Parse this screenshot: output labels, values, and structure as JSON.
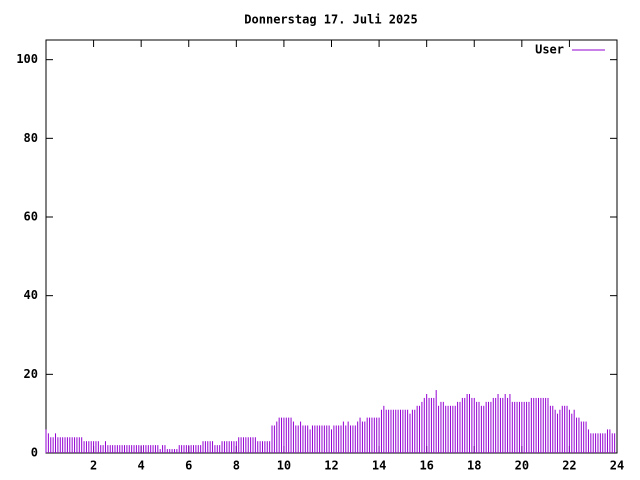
{
  "chart_data": {
    "type": "impulses",
    "title": "Donnerstag 17. Juli 2025",
    "x": [
      0,
      0.1,
      0.2,
      0.3,
      0.4,
      0.5,
      0.6,
      0.7,
      0.8,
      0.9,
      1,
      1.1,
      1.2,
      1.3,
      1.4,
      1.5,
      1.6,
      1.7,
      1.8,
      1.9,
      2,
      2.1,
      2.2,
      2.3,
      2.4,
      2.5,
      2.6,
      2.7,
      2.8,
      2.9,
      3,
      3.1,
      3.2,
      3.3,
      3.4,
      3.5,
      3.6,
      3.7,
      3.8,
      3.9,
      4,
      4.1,
      4.2,
      4.3,
      4.4,
      4.5,
      4.6,
      4.7,
      4.8,
      4.9,
      5,
      5.1,
      5.2,
      5.3,
      5.4,
      5.5,
      5.6,
      5.7,
      5.8,
      5.9,
      6,
      6.1,
      6.2,
      6.3,
      6.4,
      6.5,
      6.6,
      6.7,
      6.8,
      6.9,
      7,
      7.1,
      7.2,
      7.3,
      7.4,
      7.5,
      7.6,
      7.7,
      7.8,
      7.9,
      8,
      8.1,
      8.2,
      8.3,
      8.4,
      8.5,
      8.6,
      8.7,
      8.8,
      8.9,
      9,
      9.1,
      9.2,
      9.3,
      9.4,
      9.5,
      9.6,
      9.7,
      9.8,
      9.9,
      10,
      10.1,
      10.2,
      10.3,
      10.4,
      10.5,
      10.6,
      10.7,
      10.8,
      10.9,
      11,
      11.1,
      11.2,
      11.3,
      11.4,
      11.5,
      11.6,
      11.7,
      11.8,
      11.9,
      12,
      12.1,
      12.2,
      12.3,
      12.4,
      12.5,
      12.6,
      12.7,
      12.8,
      12.9,
      13,
      13.1,
      13.2,
      13.3,
      13.4,
      13.5,
      13.6,
      13.7,
      13.8,
      13.9,
      14,
      14.1,
      14.2,
      14.3,
      14.4,
      14.5,
      14.6,
      14.7,
      14.8,
      14.9,
      15,
      15.1,
      15.2,
      15.3,
      15.4,
      15.5,
      15.6,
      15.7,
      15.8,
      15.9,
      16,
      16.1,
      16.2,
      16.3,
      16.4,
      16.5,
      16.6,
      16.7,
      16.8,
      16.9,
      17,
      17.1,
      17.2,
      17.3,
      17.4,
      17.5,
      17.6,
      17.7,
      17.8,
      17.9,
      18,
      18.1,
      18.2,
      18.3,
      18.4,
      18.5,
      18.6,
      18.7,
      18.8,
      18.9,
      19,
      19.1,
      19.2,
      19.3,
      19.4,
      19.5,
      19.6,
      19.7,
      19.8,
      19.9,
      20,
      20.1,
      20.2,
      20.3,
      20.4,
      20.5,
      20.6,
      20.7,
      20.8,
      20.9,
      21,
      21.1,
      21.2,
      21.3,
      21.4,
      21.5,
      21.6,
      21.7,
      21.8,
      21.9,
      22,
      22.1,
      22.2,
      22.3,
      22.4,
      22.5,
      22.6,
      22.7,
      22.8,
      22.9,
      23,
      23.1,
      23.2,
      23.3,
      23.4,
      23.5,
      23.6,
      23.7,
      23.8,
      23.9
    ],
    "series": [
      {
        "name": "User",
        "color": "#9400d3",
        "values": [
          6,
          5,
          4,
          4,
          5,
          4,
          4,
          4,
          4,
          4,
          4,
          4,
          4,
          4,
          4,
          4,
          3,
          3,
          3,
          3,
          3,
          3,
          3,
          2,
          2,
          3,
          2,
          2,
          2,
          2,
          2,
          2,
          2,
          2,
          2,
          2,
          2,
          2,
          2,
          2,
          2,
          2,
          2,
          2,
          2,
          2,
          2,
          2,
          1,
          2,
          2,
          1,
          1,
          1,
          1,
          1,
          2,
          2,
          2,
          2,
          2,
          2,
          2,
          2,
          2,
          2,
          3,
          3,
          3,
          3,
          3,
          2,
          2,
          2,
          3,
          3,
          3,
          3,
          3,
          3,
          3,
          4,
          4,
          4,
          4,
          4,
          4,
          4,
          4,
          3,
          3,
          3,
          3,
          3,
          3,
          7,
          7,
          8,
          9,
          9,
          9,
          9,
          9,
          9,
          8,
          7,
          7,
          8,
          7,
          7,
          7,
          6,
          7,
          7,
          7,
          7,
          7,
          7,
          7,
          7,
          6,
          7,
          7,
          7,
          7,
          8,
          7,
          8,
          7,
          7,
          7,
          8,
          9,
          8,
          8,
          9,
          9,
          9,
          9,
          9,
          9,
          11,
          12,
          11,
          11,
          11,
          11,
          11,
          11,
          11,
          11,
          11,
          11,
          10,
          11,
          11,
          12,
          12,
          13,
          14,
          15,
          14,
          14,
          14,
          16,
          12,
          13,
          13,
          12,
          12,
          12,
          12,
          12,
          13,
          13,
          14,
          14,
          15,
          15,
          14,
          14,
          13,
          13,
          12,
          12,
          13,
          13,
          13,
          14,
          14,
          15,
          14,
          14,
          15,
          14,
          15,
          13,
          13,
          13,
          13,
          13,
          13,
          13,
          13,
          14,
          14,
          14,
          14,
          14,
          14,
          14,
          14,
          12,
          12,
          11,
          10,
          11,
          12,
          12,
          12,
          11,
          10,
          11,
          9,
          9,
          8,
          8,
          8,
          6,
          5,
          5,
          5,
          5,
          5,
          5,
          5,
          6,
          6,
          5,
          5
        ]
      }
    ],
    "xlim": [
      0,
      24
    ],
    "xticks": [
      2,
      4,
      6,
      8,
      10,
      12,
      14,
      16,
      18,
      20,
      22,
      24
    ],
    "ylim": [
      0,
      105
    ],
    "yticks": [
      0,
      20,
      40,
      60,
      80,
      100
    ],
    "legend": "upper right"
  }
}
